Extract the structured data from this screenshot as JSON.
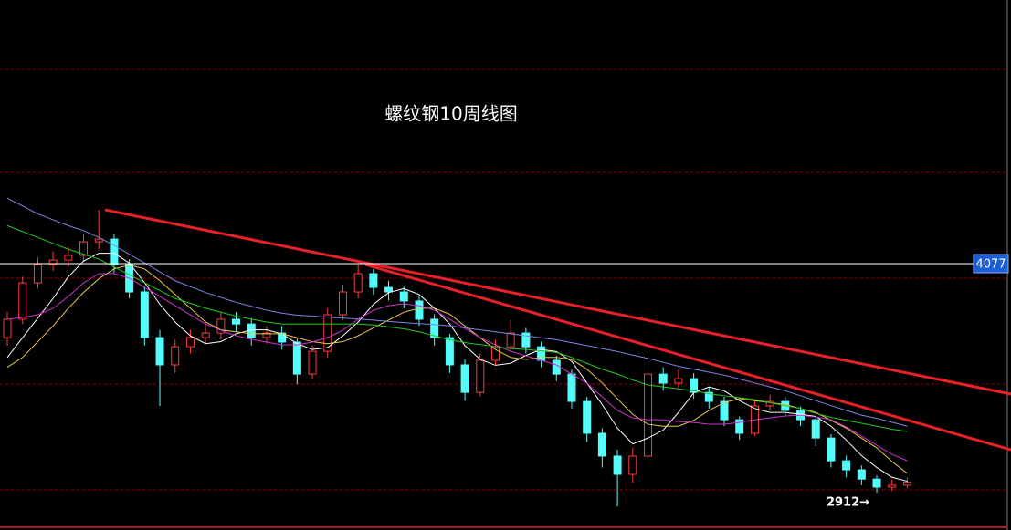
{
  "chart_data": {
    "type": "candlestick",
    "title": "螺纹钢10周线图",
    "xlim": [
      -0.48,
      65.8
    ],
    "ylim": [
      2722,
      5418
    ],
    "up_color": "#ff3b3b",
    "down_color": "#54fcfc",
    "grid_color": "#8b0000",
    "grid_values": [
      5066,
      4541,
      4003,
      3464,
      2926
    ],
    "open": [
      3700,
      3794,
      3979,
      4072,
      4095,
      4119,
      4188,
      4202,
      4072,
      3933,
      3701,
      3562,
      3654,
      3701,
      3724,
      3794,
      3770,
      3701,
      3724,
      3678,
      3515,
      3631,
      3817,
      3933,
      4026,
      3956,
      3933,
      3887,
      3794,
      3701,
      3562,
      3422,
      3585,
      3654,
      3724,
      3654,
      3585,
      3515,
      3376,
      3214,
      3098,
      3005,
      3098,
      3515,
      3469,
      3492,
      3422,
      3376,
      3283,
      3214,
      3353,
      3376,
      3330,
      3283,
      3190,
      3074,
      3028,
      2981,
      2940,
      2950
    ],
    "high": [
      3830,
      4010,
      4110,
      4140,
      4160,
      4230,
      4351,
      4230,
      4100,
      3960,
      3740,
      3690,
      3740,
      3770,
      3830,
      3830,
      3800,
      3760,
      3760,
      3700,
      3660,
      3850,
      3970,
      4072,
      4050,
      3990,
      3960,
      3910,
      3820,
      3720,
      3590,
      3620,
      3690,
      3790,
      3750,
      3680,
      3610,
      3540,
      3400,
      3240,
      3130,
      3140,
      3631,
      3550,
      3540,
      3520,
      3450,
      3400,
      3300,
      3380,
      3410,
      3400,
      3350,
      3300,
      3210,
      3100,
      3050,
      3000,
      2980,
      2990
    ],
    "low": [
      3660,
      3770,
      3950,
      4040,
      4060,
      4090,
      4150,
      4030,
      3900,
      3660,
      3353,
      3520,
      3620,
      3670,
      3690,
      3730,
      3660,
      3670,
      3640,
      3464,
      3490,
      3600,
      3790,
      3900,
      3920,
      3890,
      3850,
      3760,
      3660,
      3520,
      3380,
      3400,
      3560,
      3630,
      3620,
      3550,
      3480,
      3340,
      3170,
      3040,
      2842,
      2960,
      3080,
      3430,
      3440,
      3390,
      3340,
      3250,
      3180,
      3200,
      3330,
      3300,
      3250,
      3150,
      3040,
      2990,
      2950,
      2912,
      2920,
      2935
    ],
    "close": [
      3794,
      3979,
      4072,
      4095,
      4119,
      4188,
      4202,
      4072,
      3933,
      3701,
      3562,
      3654,
      3701,
      3724,
      3794,
      3770,
      3701,
      3724,
      3678,
      3515,
      3631,
      3817,
      3933,
      4026,
      3956,
      3933,
      3887,
      3794,
      3701,
      3562,
      3422,
      3585,
      3654,
      3724,
      3654,
      3585,
      3515,
      3376,
      3214,
      3098,
      3005,
      3098,
      3515,
      3469,
      3492,
      3422,
      3376,
      3283,
      3214,
      3353,
      3376,
      3330,
      3283,
      3190,
      3074,
      3028,
      2981,
      2940,
      2950,
      2965
    ],
    "series": [
      {
        "color": "#ffffff",
        "values": [
          3600,
          3700,
          3800,
          3900,
          4010,
          4090,
          4130,
          4130,
          4080,
          3980,
          3870,
          3780,
          3710,
          3670,
          3680,
          3720,
          3740,
          3740,
          3720,
          3670,
          3640,
          3650,
          3710,
          3780,
          3870,
          3930,
          3950,
          3920,
          3850,
          3770,
          3660,
          3590,
          3560,
          3570,
          3610,
          3640,
          3630,
          3580,
          3470,
          3360,
          3240,
          3160,
          3190,
          3230,
          3320,
          3420,
          3450,
          3430,
          3380,
          3340,
          3320,
          3320,
          3310,
          3300,
          3250,
          3180,
          3100,
          3040,
          2990,
          2970
        ]
      },
      {
        "color": "#e6c84a",
        "values": [
          3550,
          3600,
          3680,
          3760,
          3850,
          3930,
          4000,
          4050,
          4070,
          4050,
          3990,
          3920,
          3850,
          3780,
          3740,
          3730,
          3720,
          3720,
          3720,
          3700,
          3680,
          3670,
          3680,
          3710,
          3750,
          3790,
          3830,
          3850,
          3850,
          3820,
          3760,
          3700,
          3640,
          3600,
          3590,
          3600,
          3600,
          3590,
          3540,
          3470,
          3390,
          3310,
          3260,
          3250,
          3250,
          3280,
          3330,
          3370,
          3390,
          3380,
          3370,
          3360,
          3340,
          3320,
          3280,
          3240,
          3190,
          3140,
          3070,
          3010
        ]
      },
      {
        "color": "#d030d0",
        "values": [
          3794,
          3803,
          3817,
          3849,
          3910,
          3979,
          4026,
          4026,
          4003,
          3956,
          3910,
          3863,
          3817,
          3770,
          3738,
          3710,
          3692,
          3678,
          3664,
          3664,
          3678,
          3701,
          3738,
          3794,
          3840,
          3863,
          3873,
          3863,
          3840,
          3794,
          3747,
          3701,
          3664,
          3631,
          3608,
          3585,
          3562,
          3515,
          3469,
          3399,
          3330,
          3292,
          3283,
          3283,
          3274,
          3269,
          3260,
          3260,
          3269,
          3283,
          3292,
          3302,
          3306,
          3297,
          3283,
          3246,
          3200,
          3153,
          3107,
          3074
        ]
      },
      {
        "color": "#22c922",
        "values": [
          4270,
          4240,
          4210,
          4180,
          4150,
          4125,
          4100,
          4060,
          4020,
          3980,
          3940,
          3900,
          3875,
          3850,
          3830,
          3810,
          3795,
          3780,
          3770,
          3770,
          3770,
          3770,
          3770,
          3770,
          3765,
          3755,
          3745,
          3730,
          3710,
          3690,
          3675,
          3665,
          3655,
          3645,
          3640,
          3633,
          3625,
          3600,
          3570,
          3540,
          3515,
          3485,
          3460,
          3450,
          3440,
          3430,
          3415,
          3405,
          3395,
          3385,
          3370,
          3355,
          3340,
          3315,
          3295,
          3280,
          3265,
          3250,
          3235,
          3223
        ]
      },
      {
        "color": "#7f85e8",
        "values": [
          4410,
          4370,
          4330,
          4300,
          4270,
          4245,
          4210,
          4170,
          4125,
          4080,
          4035,
          3990,
          3960,
          3930,
          3905,
          3880,
          3860,
          3840,
          3825,
          3815,
          3810,
          3805,
          3800,
          3795,
          3790,
          3783,
          3777,
          3772,
          3767,
          3760,
          3750,
          3740,
          3730,
          3720,
          3710,
          3700,
          3690,
          3675,
          3660,
          3645,
          3630,
          3612,
          3595,
          3575,
          3555,
          3540,
          3525,
          3510,
          3490,
          3470,
          3450,
          3430,
          3405,
          3380,
          3355,
          3330,
          3306,
          3290,
          3270,
          3250
        ]
      }
    ],
    "trendlines": [
      {
        "color": "#e8202a",
        "x": [
          6.4,
          65.8
        ],
        "y": [
          4351,
          3413
        ]
      },
      {
        "color": "#e8202a",
        "x": [
          23.47,
          65.8
        ],
        "y": [
          4072,
          3130
        ]
      }
    ],
    "price_line": 4077,
    "price_line_color": "#ffffff",
    "annotation": {
      "text": "2912→",
      "value": 2912,
      "index": 57
    }
  }
}
